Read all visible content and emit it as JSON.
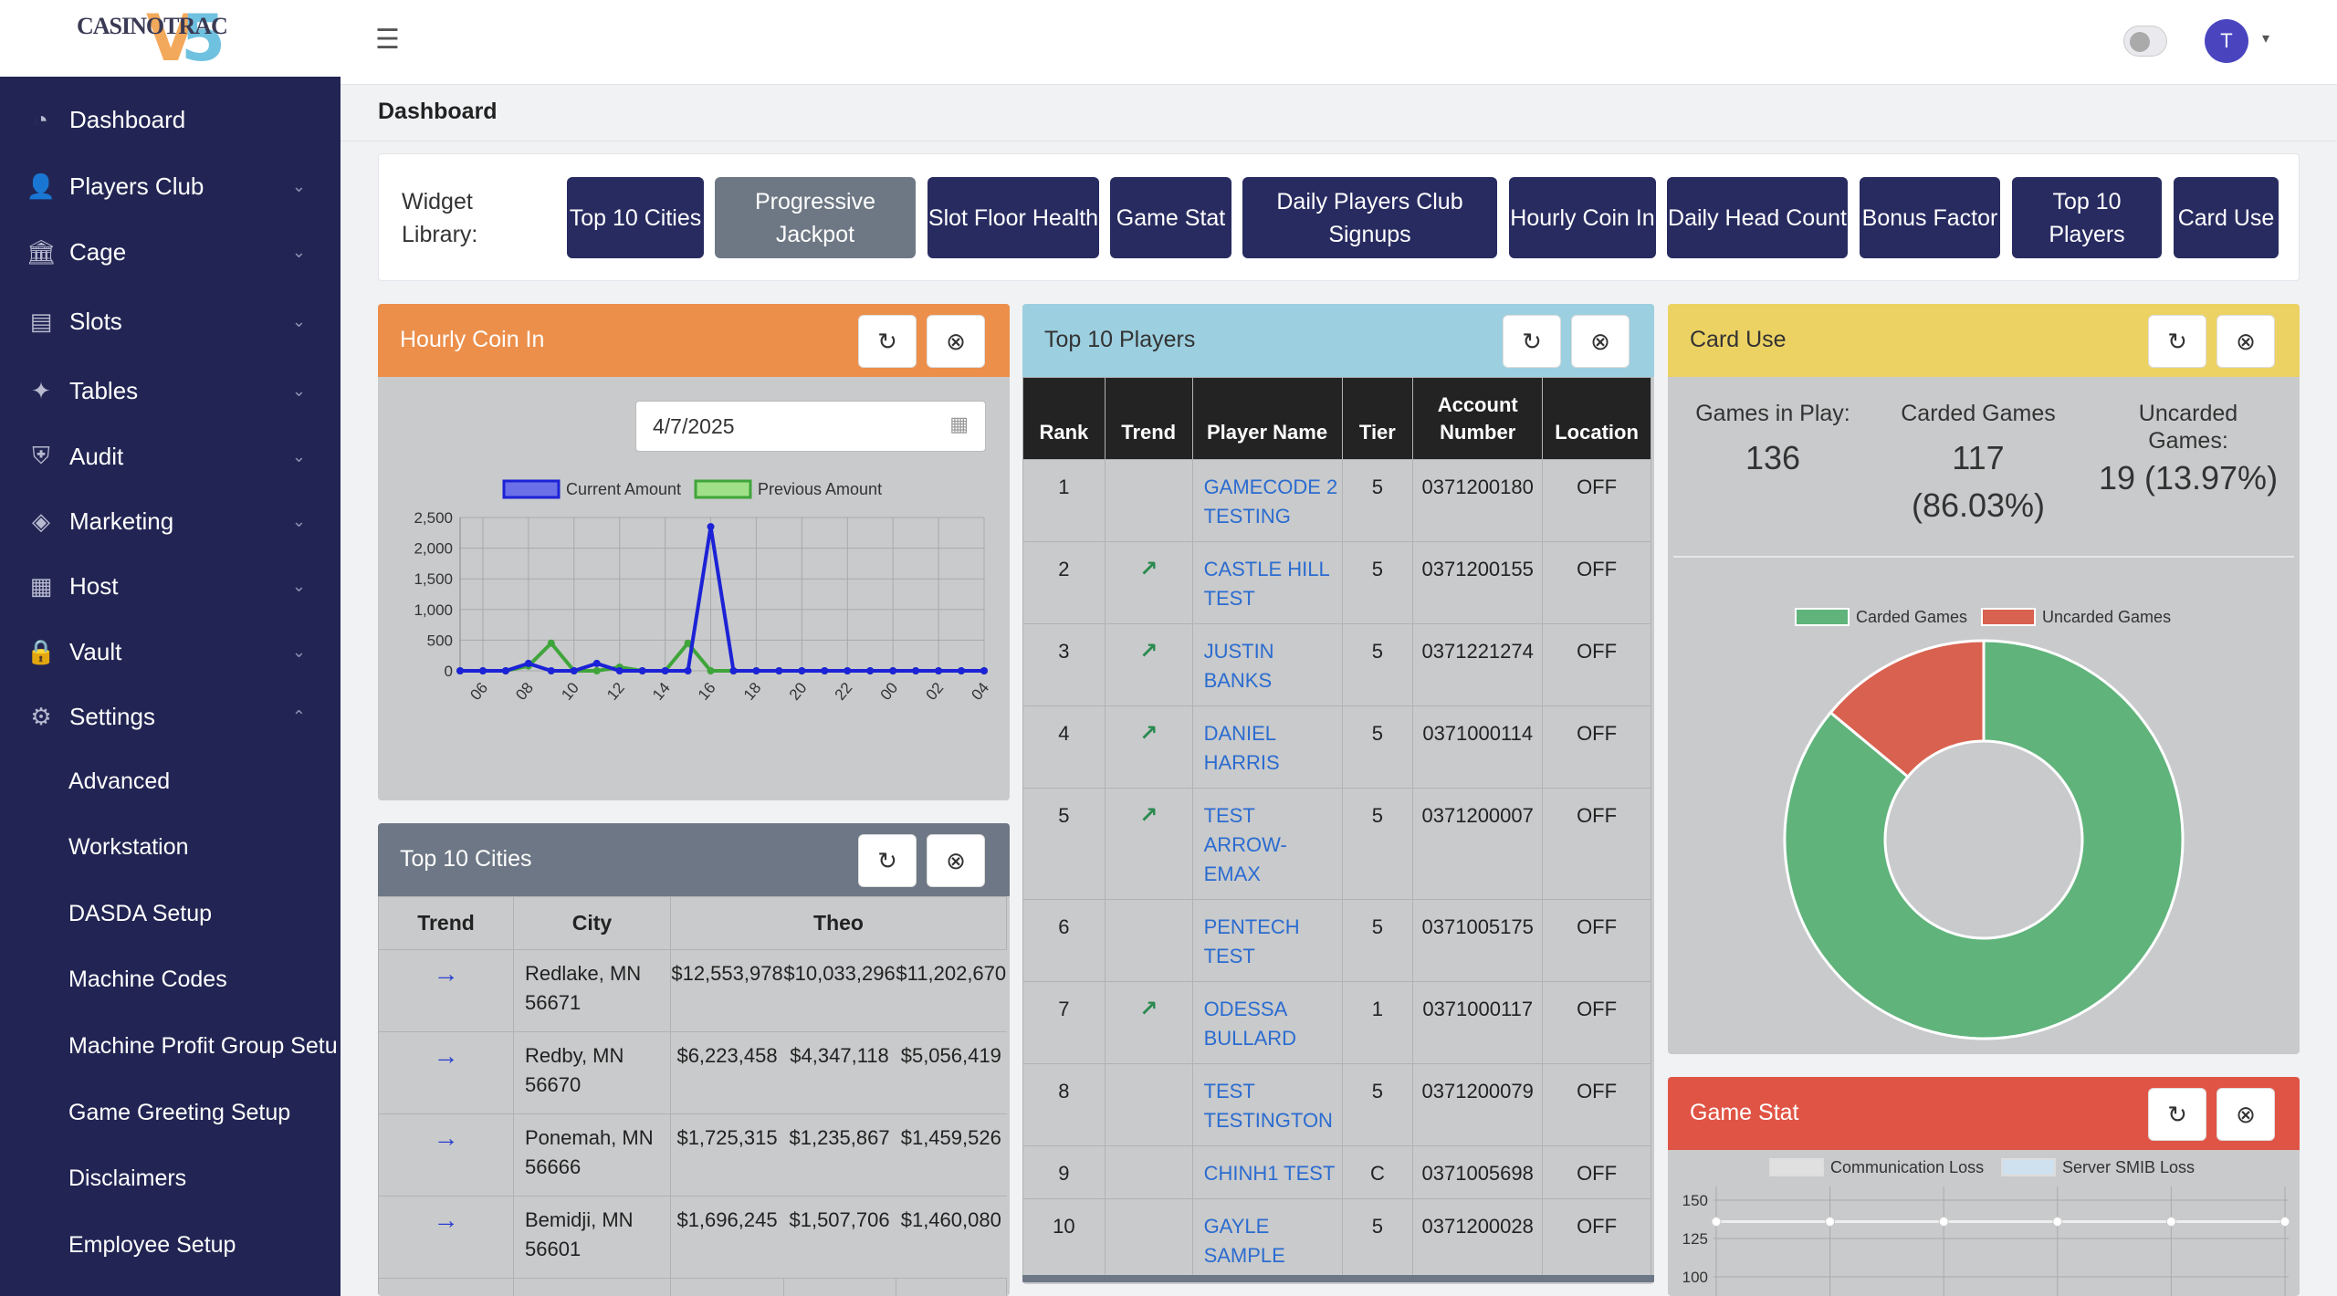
{
  "logo": {
    "text": "CASINOTRAC",
    "version_v": "V",
    "version_5": "5"
  },
  "sidebar": {
    "items": [
      {
        "label": "Dashboard",
        "icon": "dashboard-icon"
      },
      {
        "label": "Players Club",
        "icon": "user-icon"
      },
      {
        "label": "Cage",
        "icon": "bank-icon"
      },
      {
        "label": "Slots",
        "icon": "slot-machine-icon"
      },
      {
        "label": "Tables",
        "icon": "cards-icon"
      },
      {
        "label": "Audit",
        "icon": "shield-icon"
      },
      {
        "label": "Marketing",
        "icon": "diamond-icon"
      },
      {
        "label": "Host",
        "icon": "building-icon"
      },
      {
        "label": "Vault",
        "icon": "lock-icon"
      },
      {
        "label": "Settings",
        "icon": "gear-icon"
      }
    ],
    "settings_sub": [
      "Advanced",
      "Workstation",
      "DASDA Setup",
      "Machine Codes",
      "Machine Profit Group Setu",
      "Game Greeting Setup",
      "Disclaimers",
      "Employee Setup"
    ]
  },
  "header": {
    "avatar_initial": "T",
    "page_title": "Dashboard"
  },
  "widget_library": {
    "label": "Widget Library:",
    "buttons": [
      "Top 10 Cities",
      "Progressive Jackpot",
      "Slot Floor Health",
      "Game Stat",
      "Daily Players Club Signups",
      "Hourly Coin In",
      "Daily Head Count",
      "Bonus Factor",
      "Top 10 Players",
      "Card Use"
    ]
  },
  "colors": {
    "sidebar": "#222553",
    "hourly_head": "#ec8f4b",
    "cities_head": "#6d7785",
    "players_head": "#9ccfe0",
    "carduse_head": "#ecd263",
    "gamestat_head": "#e05445",
    "carded": "#5fb37b",
    "uncarded": "#d9614f",
    "current": "#1c22d6",
    "previous": "#3fa53a"
  },
  "hourly_coin_in": {
    "title": "Hourly Coin In",
    "date": "4/7/2025",
    "chart_data": {
      "type": "line",
      "x": [
        "05",
        "06",
        "07",
        "08",
        "09",
        "10",
        "11",
        "12",
        "13",
        "14",
        "15",
        "16",
        "17",
        "18",
        "19",
        "20",
        "21",
        "22",
        "23",
        "00",
        "01",
        "02",
        "03",
        "04"
      ],
      "x_tick_labels": [
        "06",
        "08",
        "10",
        "12",
        "14",
        "16",
        "18",
        "20",
        "22",
        "00",
        "02",
        "04"
      ],
      "series": [
        {
          "name": "Current Amount",
          "values": [
            0,
            0,
            0,
            120,
            0,
            0,
            120,
            0,
            0,
            0,
            0,
            2350,
            0,
            0,
            0,
            0,
            0,
            0,
            0,
            0,
            0,
            0,
            0,
            0
          ]
        },
        {
          "name": "Previous Amount",
          "values": [
            0,
            0,
            0,
            80,
            450,
            0,
            0,
            60,
            0,
            0,
            450,
            0,
            0,
            0,
            0,
            0,
            0,
            0,
            0,
            0,
            0,
            0,
            0,
            0
          ]
        }
      ],
      "ylim": [
        0,
        2500
      ],
      "y_ticks": [
        "2,500",
        "2,000",
        "1,500",
        "1,000",
        "500",
        "0"
      ],
      "grid": true,
      "legend": "top"
    }
  },
  "top_cities": {
    "title": "Top 10 Cities",
    "headers": [
      "Trend",
      "City",
      "Theo"
    ],
    "rows": [
      {
        "city": "Redlake, MN 56671",
        "theo": [
          "$12,553,978",
          "$10,033,296",
          "$11,202,670"
        ]
      },
      {
        "city": "Redby, MN 56670",
        "theo": [
          "$6,223,458",
          "$4,347,118",
          "$5,056,419"
        ]
      },
      {
        "city": "Ponemah, MN 56666",
        "theo": [
          "$1,725,315",
          "$1,235,867",
          "$1,459,526"
        ]
      },
      {
        "city": "Bemidji, MN 56601",
        "theo": [
          "$1,696,245",
          "$1,507,706",
          "$1,460,080"
        ]
      }
    ]
  },
  "top_players": {
    "title": "Top 10 Players",
    "headers": [
      "Rank",
      "Trend",
      "Player Name",
      "Tier",
      "Account Number",
      "Location"
    ],
    "rows": [
      {
        "rank": "1",
        "trend": "",
        "name": "GAMECODE 2 TESTING",
        "tier": "5",
        "account": "0371200180",
        "location": "OFF"
      },
      {
        "rank": "2",
        "trend": "up",
        "name": "CASTLE HILL TEST",
        "tier": "5",
        "account": "0371200155",
        "location": "OFF"
      },
      {
        "rank": "3",
        "trend": "up",
        "name": "JUSTIN BANKS",
        "tier": "5",
        "account": "0371221274",
        "location": "OFF"
      },
      {
        "rank": "4",
        "trend": "up",
        "name": "DANIEL HARRIS",
        "tier": "5",
        "account": "0371000114",
        "location": "OFF"
      },
      {
        "rank": "5",
        "trend": "up",
        "name": "TEST ARROW-EMAX",
        "tier": "5",
        "account": "0371200007",
        "location": "OFF"
      },
      {
        "rank": "6",
        "trend": "",
        "name": "PENTECH TEST",
        "tier": "5",
        "account": "0371005175",
        "location": "OFF"
      },
      {
        "rank": "7",
        "trend": "up",
        "name": "ODESSA BULLARD",
        "tier": "1",
        "account": "0371000117",
        "location": "OFF"
      },
      {
        "rank": "8",
        "trend": "",
        "name": "TEST TESTINGTON",
        "tier": "5",
        "account": "0371200079",
        "location": "OFF"
      },
      {
        "rank": "9",
        "trend": "",
        "name": "CHINH1 TEST",
        "tier": "C",
        "account": "0371005698",
        "location": "OFF"
      },
      {
        "rank": "10",
        "trend": "",
        "name": "GAYLE SAMPLE",
        "tier": "5",
        "account": "0371200028",
        "location": "OFF"
      }
    ]
  },
  "card_use": {
    "title": "Card Use",
    "games_in_play_label": "Games in Play:",
    "games_in_play": "136",
    "carded_label": "Carded Games",
    "carded": "117 (86.03%)",
    "uncarded_label": "Uncarded Games:",
    "uncarded": "19 (13.97%)",
    "chart_data": {
      "type": "pie",
      "labels": [
        "Carded Games",
        "Uncarded Games"
      ],
      "values": [
        117,
        19
      ],
      "legend": "top"
    }
  },
  "game_stat": {
    "title": "Game Stat",
    "chart_data": {
      "type": "line",
      "series": [
        {
          "name": "Communication Loss",
          "values": [
            136,
            136,
            136,
            136,
            136,
            136
          ]
        },
        {
          "name": "Server SMIB Loss",
          "values": []
        }
      ],
      "y_ticks": [
        "150",
        "125",
        "100"
      ],
      "legend": "top"
    }
  }
}
